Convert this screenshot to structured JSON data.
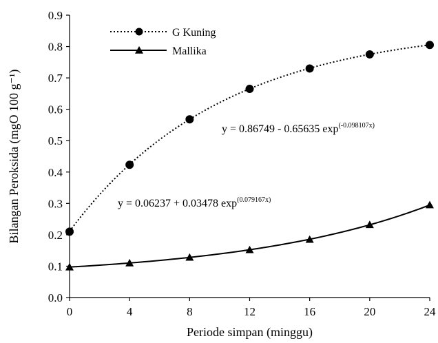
{
  "chart_data": {
    "type": "line",
    "xlabel": "Periode simpan (minggu)",
    "ylabel": "Bilangan Peroksida (mgO 100 g⁻¹)",
    "xlim": [
      0,
      24
    ],
    "ylim": [
      0,
      0.9
    ],
    "x_ticks": [
      "0",
      "4",
      "8",
      "12",
      "16",
      "20",
      "24"
    ],
    "y_ticks": [
      "0.0",
      "0.1",
      "0.2",
      "0.3",
      "0.4",
      "0.5",
      "0.6",
      "0.7",
      "0.8",
      "0.9"
    ],
    "grid": false,
    "legend_position": "top-left",
    "x": [
      0,
      4,
      8,
      12,
      16,
      20,
      24
    ],
    "series": [
      {
        "name": "G Kuning",
        "values": [
          0.21,
          0.423,
          0.568,
          0.665,
          0.73,
          0.775,
          0.805
        ],
        "marker": "circle",
        "line_style": "dotted",
        "fit": {
          "a": 0.86749,
          "b": -0.65635,
          "k": -0.098107
        },
        "equation_main": "y = 0.86749 - 0.65635 exp",
        "equation_sup": "(-0.098107x)"
      },
      {
        "name": "Mallika",
        "values": [
          0.097,
          0.11,
          0.128,
          0.152,
          0.185,
          0.232,
          0.295
        ],
        "marker": "triangle",
        "line_style": "solid",
        "fit": {
          "a": 0.06237,
          "b": 0.03478,
          "k": 0.079167
        },
        "equation_main": "y = 0.06237 + 0.03478 exp",
        "equation_sup": "(0.079167x)"
      }
    ]
  }
}
